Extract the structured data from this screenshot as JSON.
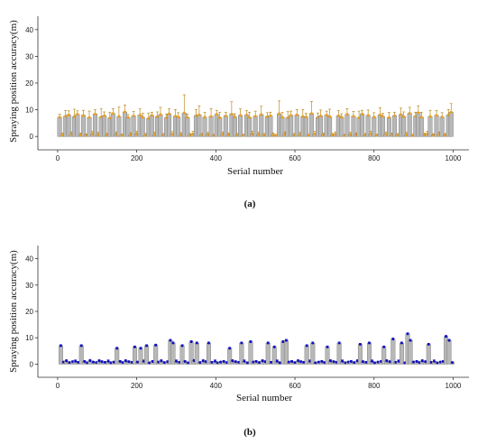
{
  "chart_data": [
    {
      "type": "bar",
      "panel_label": "(a)",
      "xlabel": "Serial number",
      "ylabel": "Spraying position accuracy(m)",
      "xlim": [
        -50,
        1040
      ],
      "ylim": [
        -5,
        45
      ],
      "xticks": [
        0,
        200,
        400,
        600,
        800,
        1000
      ],
      "yticks": [
        0,
        10,
        20,
        30,
        40
      ],
      "marker_color": "#e8a020",
      "error_cap_color": "#b07a00",
      "bar_color": "#b8b8b8",
      "series": [
        {
          "x": [
            5,
            12,
            20,
            28,
            35,
            42,
            50,
            58,
            65,
            72,
            80,
            88,
            95,
            102,
            110,
            118,
            125,
            132,
            140,
            148,
            155,
            162,
            170,
            178,
            185,
            192,
            200,
            208,
            215,
            222,
            230,
            238,
            245,
            252,
            260,
            268,
            275,
            282,
            290,
            298,
            305,
            312,
            320,
            328,
            335,
            342,
            350,
            358,
            365,
            372,
            380,
            388,
            395,
            402,
            410,
            418,
            425,
            432,
            440,
            448,
            455,
            462,
            470,
            478,
            485,
            492,
            500,
            508,
            515,
            522,
            530,
            538,
            545,
            552,
            560,
            568,
            575,
            582,
            590,
            598,
            605,
            612,
            620,
            628,
            635,
            642,
            650,
            658,
            665,
            672,
            680,
            688,
            695,
            702,
            710,
            718,
            725,
            732,
            740,
            748,
            755,
            762,
            770,
            778,
            785,
            792,
            800,
            808,
            815,
            822,
            830,
            838,
            845,
            852,
            860,
            868,
            875,
            882,
            890,
            898,
            905,
            912,
            920,
            928,
            935,
            942,
            950,
            958,
            965,
            972,
            980,
            988,
            995
          ],
          "values": [
            7.2,
            0.5,
            7.6,
            8.1,
            0.8,
            7.4,
            8.3,
            0.6,
            7.9,
            0.4,
            7.1,
            0.9,
            8.4,
            0.7,
            7.3,
            7.8,
            0.5,
            6.9,
            8.6,
            0.8,
            7.5,
            0.3,
            9.2,
            7.1,
            0.6,
            7.7,
            0.9,
            8.0,
            7.2,
            0.4,
            6.8,
            7.9,
            0.7,
            7.4,
            8.2,
            0.5,
            7.0,
            8.5,
            0.8,
            7.6,
            7.3,
            0.6,
            8.8,
            7.1,
            0.4,
            0.9,
            7.8,
            8.1,
            0.5,
            7.2,
            0.7,
            7.5,
            0.3,
            8.3,
            7.0,
            0.8,
            7.7,
            0.6,
            8.4,
            7.3,
            0.5,
            7.9,
            0.4,
            8.0,
            7.1,
            0.9,
            7.6,
            0.7,
            8.2,
            0.5,
            7.4,
            7.8,
            0.6,
            0.3,
            8.5,
            7.2,
            0.8,
            7.0,
            7.9,
            0.5,
            8.1,
            0.7,
            7.5,
            7.3,
            0.4,
            8.6,
            0.9,
            7.1,
            7.7,
            0.6,
            8.0,
            7.4,
            0.5,
            0.8,
            7.8,
            7.2,
            0.3,
            8.3,
            0.7,
            7.6,
            0.6,
            7.0,
            8.4,
            0.5,
            7.9,
            0.9,
            7.3,
            0.4,
            8.1,
            7.5,
            0.8,
            7.1,
            0.6,
            7.8,
            0.5,
            8.2,
            7.4,
            0.7,
            8.7,
            0.3,
            7.6,
            8.9,
            7.2,
            0.6,
            0.9,
            7.5,
            0.4,
            7.9,
            0.8,
            7.3,
            0.5,
            8.0,
            9.1
          ],
          "errors": [
            1.2,
            0.8,
            2.1,
            1.5,
            0.9,
            2.8,
            1.3,
            0.7,
            1.9,
            0.6,
            2.4,
            1.0,
            1.6,
            0.8,
            3.0,
            1.4,
            0.7,
            2.2,
            1.8,
            0.9,
            3.5,
            0.6,
            2.6,
            1.1,
            0.8,
            1.7,
            1.0,
            2.3,
            1.5,
            0.7,
            2.0,
            1.2,
            0.9,
            1.8,
            2.7,
            0.6,
            1.4,
            1.9,
            1.0,
            2.5,
            1.6,
            0.8,
            6.8,
            1.3,
            0.7,
            1.0,
            2.2,
            3.4,
            0.6,
            1.8,
            0.8,
            2.9,
            0.5,
            1.5,
            2.1,
            0.9,
            1.4,
            0.7,
            4.6,
            1.2,
            0.6,
            2.4,
            0.5,
            1.7,
            2.0,
            1.0,
            1.9,
            0.8,
            3.1,
            0.6,
            1.5,
            1.3,
            0.7,
            0.5,
            4.8,
            1.8,
            0.9,
            2.3,
            1.6,
            0.6,
            2.0,
            0.8,
            2.6,
            1.4,
            0.5,
            4.5,
            1.0,
            1.7,
            2.2,
            0.7,
            1.5,
            2.8,
            0.6,
            0.9,
            1.9,
            1.3,
            0.5,
            2.1,
            0.8,
            1.8,
            0.7,
            2.5,
            1.4,
            0.6,
            2.0,
            1.0,
            1.6,
            0.5,
            2.7,
            1.2,
            0.9,
            1.9,
            0.7,
            1.3,
            0.6,
            2.4,
            1.8,
            0.8,
            2.2,
            0.5,
            1.5,
            2.6,
            1.9,
            0.7,
            1.0,
            2.3,
            0.6,
            1.8,
            0.9,
            1.6,
            0.6,
            2.1,
            3.2
          ]
        }
      ]
    },
    {
      "type": "bar",
      "panel_label": "(b)",
      "xlabel": "Serial number",
      "ylabel": "Spraying position accuracy(m)",
      "xlim": [
        -50,
        1040
      ],
      "ylim": [
        -5,
        45
      ],
      "xticks": [
        0,
        200,
        400,
        600,
        800,
        1000
      ],
      "yticks": [
        0,
        10,
        20,
        30,
        40
      ],
      "marker_color": "#1010c0",
      "error_cap_color": "#1010c0",
      "bar_color": "#b8b8b8",
      "series": [
        {
          "x": [
            8,
            15,
            22,
            30,
            38,
            45,
            52,
            60,
            68,
            75,
            82,
            90,
            98,
            105,
            112,
            120,
            128,
            135,
            142,
            150,
            158,
            165,
            172,
            180,
            188,
            195,
            202,
            210,
            218,
            225,
            232,
            240,
            248,
            255,
            262,
            270,
            278,
            285,
            292,
            300,
            308,
            315,
            322,
            330,
            338,
            345,
            352,
            360,
            368,
            375,
            382,
            390,
            398,
            405,
            412,
            420,
            428,
            435,
            442,
            450,
            458,
            465,
            472,
            480,
            488,
            495,
            502,
            510,
            518,
            525,
            532,
            540,
            548,
            555,
            562,
            570,
            578,
            585,
            592,
            600,
            608,
            615,
            622,
            630,
            638,
            645,
            652,
            660,
            668,
            675,
            682,
            690,
            698,
            705,
            712,
            720,
            728,
            735,
            742,
            750,
            758,
            765,
            772,
            780,
            788,
            795,
            802,
            810,
            818,
            825,
            832,
            840,
            848,
            855,
            862,
            870,
            878,
            885,
            892,
            900,
            908,
            915,
            922,
            930,
            938,
            945,
            952,
            960,
            968,
            975,
            982,
            990,
            998
          ],
          "values": [
            7.0,
            0.8,
            1.2,
            0.6,
            0.9,
            1.1,
            0.7,
            7.0,
            1.0,
            0.5,
            1.3,
            0.8,
            0.6,
            1.2,
            0.9,
            0.7,
            1.1,
            0.5,
            0.8,
            6.0,
            1.0,
            0.6,
            1.2,
            0.9,
            0.7,
            6.5,
            0.8,
            6.0,
            1.1,
            7.0,
            0.5,
            1.0,
            7.2,
            0.8,
            1.2,
            0.6,
            0.9,
            9.0,
            8.0,
            1.1,
            0.7,
            7.0,
            1.0,
            0.5,
            8.5,
            1.3,
            8.0,
            0.6,
            1.2,
            0.9,
            8.0,
            0.7,
            1.1,
            0.5,
            0.8,
            1.0,
            0.6,
            6.0,
            1.2,
            0.9,
            0.7,
            8.0,
            1.1,
            0.5,
            8.5,
            0.8,
            1.0,
            0.6,
            1.2,
            0.9,
            8.0,
            0.7,
            6.5,
            1.1,
            0.5,
            8.5,
            9.0,
            0.8,
            1.0,
            0.6,
            1.2,
            0.9,
            0.7,
            7.0,
            1.1,
            8.0,
            0.5,
            0.8,
            1.0,
            0.6,
            6.5,
            1.2,
            0.9,
            0.7,
            8.0,
            1.1,
            0.5,
            0.8,
            1.0,
            0.6,
            1.2,
            7.5,
            0.9,
            0.7,
            8.0,
            1.1,
            0.5,
            0.8,
            1.0,
            6.5,
            1.2,
            0.9,
            9.5,
            0.7,
            1.1,
            8.0,
            0.5,
            11.5,
            9.0,
            0.8,
            1.0,
            0.6,
            1.2,
            0.9,
            7.5,
            0.7,
            1.1,
            0.5,
            0.8,
            1.0,
            10.5,
            9.0,
            0.6
          ],
          "errors": [
            0.4,
            0.3,
            0.5,
            0.3,
            0.4,
            0.5,
            0.3,
            0.4,
            0.4,
            0.3,
            0.5,
            0.3,
            0.3,
            0.5,
            0.4,
            0.3,
            0.5,
            0.3,
            0.3,
            0.4,
            0.4,
            0.3,
            0.5,
            0.4,
            0.3,
            0.4,
            0.3,
            0.4,
            0.5,
            0.4,
            0.3,
            0.4,
            0.4,
            0.3,
            0.5,
            0.3,
            0.4,
            0.4,
            0.4,
            0.5,
            0.3,
            0.4,
            0.4,
            0.3,
            0.4,
            0.5,
            0.4,
            0.3,
            0.5,
            0.4,
            0.4,
            0.3,
            0.5,
            0.3,
            0.3,
            0.4,
            0.3,
            0.4,
            0.5,
            0.4,
            0.3,
            0.4,
            0.5,
            0.3,
            0.4,
            0.3,
            0.4,
            0.3,
            0.5,
            0.4,
            0.4,
            0.3,
            0.4,
            0.5,
            0.3,
            0.4,
            0.4,
            0.3,
            0.4,
            0.3,
            0.5,
            0.4,
            0.3,
            0.4,
            0.5,
            0.4,
            0.3,
            0.3,
            0.4,
            0.3,
            0.4,
            0.5,
            0.4,
            0.3,
            0.4,
            0.5,
            0.3,
            0.3,
            0.4,
            0.3,
            0.5,
            0.4,
            0.4,
            0.3,
            0.4,
            0.5,
            0.3,
            0.3,
            0.4,
            0.4,
            0.5,
            0.4,
            0.4,
            0.3,
            0.5,
            0.4,
            0.3,
            0.4,
            0.4,
            0.3,
            0.4,
            0.3,
            0.5,
            0.4,
            0.4,
            0.3,
            0.5,
            0.3,
            0.3,
            0.4,
            0.4,
            0.4,
            0.3
          ]
        }
      ]
    }
  ]
}
